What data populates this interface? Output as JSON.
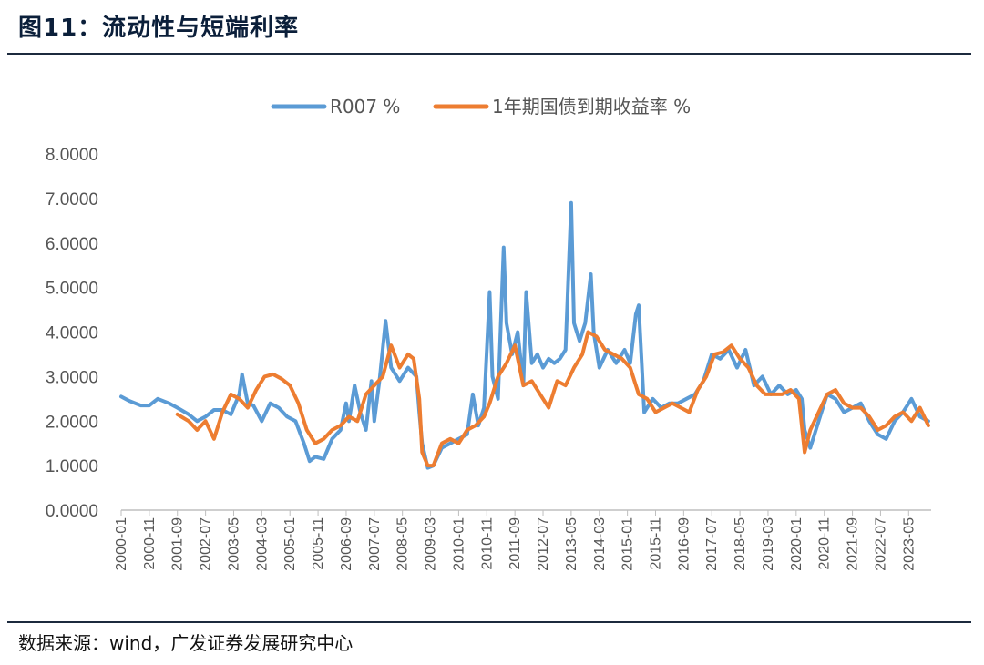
{
  "figure": {
    "title": "图11：流动性与短端利率",
    "source": "数据来源：wind，广发证券发展研究中心"
  },
  "colors": {
    "r007": "#5b9bd5",
    "cgb1y": "#ed7d31",
    "axis": "#bfbfbf"
  },
  "chart_data": {
    "type": "line",
    "title": "",
    "xlabel": "",
    "ylabel": "",
    "ylim": [
      0,
      8
    ],
    "yticks": [
      "0.0000",
      "1.0000",
      "2.0000",
      "3.0000",
      "4.0000",
      "5.0000",
      "6.0000",
      "7.0000",
      "8.0000"
    ],
    "xlim": [
      "2000-01",
      "2024-01"
    ],
    "xticks": [
      "2000-01",
      "2000-11",
      "2001-09",
      "2002-07",
      "2003-05",
      "2004-03",
      "2005-01",
      "2005-11",
      "2006-09",
      "2007-07",
      "2008-05",
      "2009-03",
      "2010-01",
      "2010-11",
      "2011-09",
      "2012-07",
      "2013-05",
      "2014-03",
      "2015-01",
      "2015-11",
      "2016-09",
      "2017-07",
      "2018-05",
      "2019-03",
      "2020-01",
      "2020-11",
      "2021-09",
      "2022-07",
      "2023-05"
    ],
    "grid": false,
    "legend_position": "top-center",
    "series": [
      {
        "name": "R007 %",
        "x": [
          "2000-01",
          "2000-04",
          "2000-08",
          "2000-11",
          "2001-02",
          "2001-06",
          "2001-09",
          "2002-01",
          "2002-04",
          "2002-07",
          "2002-10",
          "2003-01",
          "2003-04",
          "2003-07",
          "2003-08",
          "2003-10",
          "2003-12",
          "2004-03",
          "2004-06",
          "2004-09",
          "2004-12",
          "2005-03",
          "2005-06",
          "2005-08",
          "2005-10",
          "2006-01",
          "2006-04",
          "2006-07",
          "2006-09",
          "2006-10",
          "2006-12",
          "2007-02",
          "2007-04",
          "2007-06",
          "2007-07",
          "2007-09",
          "2007-11",
          "2008-01",
          "2008-04",
          "2008-07",
          "2008-10",
          "2008-11",
          "2008-12",
          "2009-02",
          "2009-04",
          "2009-07",
          "2009-10",
          "2010-01",
          "2010-04",
          "2010-06",
          "2010-08",
          "2010-10",
          "2010-12",
          "2011-01",
          "2011-03",
          "2011-05",
          "2011-06",
          "2011-08",
          "2011-10",
          "2011-12",
          "2012-01",
          "2012-03",
          "2012-05",
          "2012-07",
          "2012-09",
          "2012-11",
          "2013-01",
          "2013-03",
          "2013-05",
          "2013-06",
          "2013-08",
          "2013-10",
          "2013-12",
          "2014-01",
          "2014-03",
          "2014-06",
          "2014-09",
          "2014-12",
          "2015-02",
          "2015-04",
          "2015-05",
          "2015-07",
          "2015-10",
          "2016-01",
          "2016-04",
          "2016-07",
          "2016-10",
          "2017-01",
          "2017-04",
          "2017-07",
          "2017-10",
          "2018-01",
          "2018-04",
          "2018-07",
          "2018-10",
          "2019-01",
          "2019-04",
          "2019-07",
          "2019-10",
          "2020-01",
          "2020-03",
          "2020-04",
          "2020-06",
          "2020-09",
          "2020-12",
          "2021-03",
          "2021-06",
          "2021-09",
          "2021-12",
          "2022-03",
          "2022-06",
          "2022-09",
          "2022-12",
          "2023-03",
          "2023-06",
          "2023-09",
          "2023-12"
        ],
        "values": [
          2.55,
          2.45,
          2.35,
          2.35,
          2.5,
          2.4,
          2.3,
          2.15,
          2.0,
          2.1,
          2.25,
          2.25,
          2.15,
          2.6,
          3.05,
          2.4,
          2.35,
          2.0,
          2.4,
          2.3,
          2.1,
          2.0,
          1.5,
          1.1,
          1.2,
          1.15,
          1.6,
          1.8,
          2.4,
          2.0,
          2.8,
          2.2,
          1.8,
          2.9,
          2.0,
          3.0,
          4.25,
          3.2,
          2.9,
          3.2,
          3.0,
          2.2,
          1.5,
          0.95,
          1.0,
          1.4,
          1.5,
          1.6,
          1.7,
          2.6,
          1.9,
          2.3,
          4.9,
          3.0,
          2.5,
          5.9,
          4.2,
          3.5,
          4.0,
          2.8,
          4.9,
          3.3,
          3.5,
          3.2,
          3.4,
          3.3,
          3.4,
          3.6,
          6.9,
          4.2,
          3.8,
          4.2,
          5.3,
          4.0,
          3.2,
          3.6,
          3.3,
          3.6,
          3.3,
          4.4,
          4.6,
          2.2,
          2.5,
          2.3,
          2.4,
          2.4,
          2.5,
          2.6,
          2.9,
          3.5,
          3.4,
          3.6,
          3.2,
          3.6,
          2.8,
          3.0,
          2.6,
          2.8,
          2.6,
          2.7,
          2.5,
          1.8,
          1.4,
          2.0,
          2.6,
          2.5,
          2.2,
          2.3,
          2.4,
          2.0,
          1.7,
          1.6,
          2.0,
          2.2,
          2.5,
          2.1,
          2.0
        ]
      },
      {
        "name": "1年期国债到期收益率 %",
        "x": [
          "2001-09",
          "2002-01",
          "2002-04",
          "2002-07",
          "2002-10",
          "2003-01",
          "2003-04",
          "2003-07",
          "2003-10",
          "2004-01",
          "2004-04",
          "2004-07",
          "2004-10",
          "2005-01",
          "2005-04",
          "2005-07",
          "2005-10",
          "2006-01",
          "2006-04",
          "2006-07",
          "2006-10",
          "2007-01",
          "2007-04",
          "2007-07",
          "2007-10",
          "2008-01",
          "2008-04",
          "2008-07",
          "2008-09",
          "2008-11",
          "2008-12",
          "2009-02",
          "2009-04",
          "2009-07",
          "2009-10",
          "2010-01",
          "2010-04",
          "2010-07",
          "2010-10",
          "2010-12",
          "2011-03",
          "2011-06",
          "2011-09",
          "2011-12",
          "2012-03",
          "2012-06",
          "2012-09",
          "2012-12",
          "2013-03",
          "2013-06",
          "2013-09",
          "2013-11",
          "2014-02",
          "2014-05",
          "2014-08",
          "2014-11",
          "2015-02",
          "2015-05",
          "2015-08",
          "2015-11",
          "2016-02",
          "2016-05",
          "2016-08",
          "2016-11",
          "2017-02",
          "2017-05",
          "2017-08",
          "2017-11",
          "2018-02",
          "2018-05",
          "2018-08",
          "2018-11",
          "2019-02",
          "2019-05",
          "2019-08",
          "2019-11",
          "2020-02",
          "2020-04",
          "2020-06",
          "2020-09",
          "2020-12",
          "2021-03",
          "2021-06",
          "2021-09",
          "2021-12",
          "2022-03",
          "2022-06",
          "2022-09",
          "2022-12",
          "2023-03",
          "2023-06",
          "2023-09",
          "2023-12"
        ],
        "values": [
          2.15,
          2.0,
          1.8,
          2.0,
          1.6,
          2.2,
          2.6,
          2.5,
          2.3,
          2.7,
          3.0,
          3.05,
          2.95,
          2.8,
          2.4,
          1.8,
          1.5,
          1.6,
          1.8,
          1.9,
          2.1,
          2.0,
          2.6,
          2.8,
          3.0,
          3.7,
          3.2,
          3.5,
          3.4,
          2.5,
          1.3,
          1.0,
          1.0,
          1.5,
          1.6,
          1.5,
          1.8,
          1.9,
          2.1,
          2.4,
          3.0,
          3.3,
          3.7,
          2.8,
          2.9,
          2.6,
          2.3,
          2.9,
          2.8,
          3.2,
          3.5,
          4.0,
          3.9,
          3.6,
          3.5,
          3.4,
          3.2,
          2.6,
          2.5,
          2.2,
          2.3,
          2.4,
          2.3,
          2.2,
          2.7,
          3.0,
          3.5,
          3.55,
          3.7,
          3.4,
          3.2,
          2.8,
          2.6,
          2.6,
          2.6,
          2.7,
          2.5,
          1.3,
          1.8,
          2.2,
          2.6,
          2.7,
          2.4,
          2.3,
          2.3,
          2.1,
          1.8,
          1.9,
          2.1,
          2.2,
          2.0,
          2.3,
          1.9
        ]
      }
    ]
  }
}
